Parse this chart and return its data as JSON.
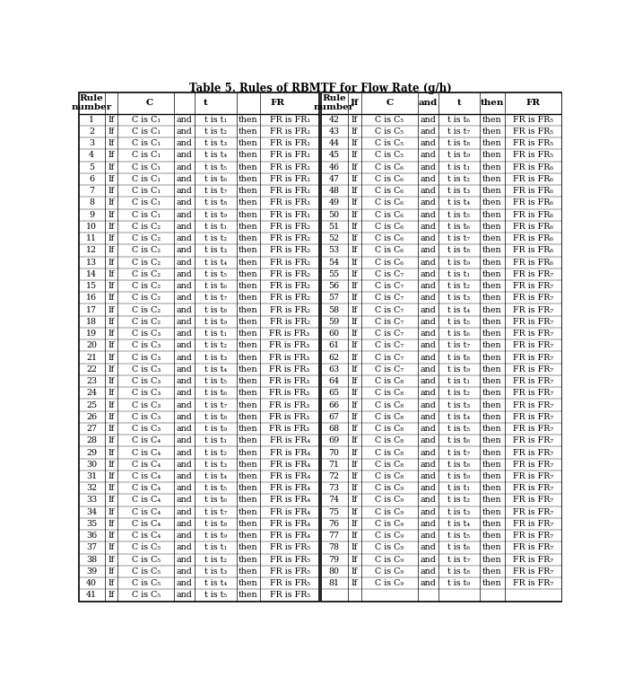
{
  "title": "Table 5. Rules of RBMTF for Flow Rate (g/h)",
  "rules": [
    [
      1,
      "C₁",
      "t₁",
      "FR₁"
    ],
    [
      2,
      "C₁",
      "t₂",
      "FR₁"
    ],
    [
      3,
      "C₁",
      "t₃",
      "FR₁"
    ],
    [
      4,
      "C₁",
      "t₄",
      "FR₁"
    ],
    [
      5,
      "C₁",
      "t₅",
      "FR₁"
    ],
    [
      6,
      "C₁",
      "t₆",
      "FR₁"
    ],
    [
      7,
      "C₁",
      "t₇",
      "FR₁"
    ],
    [
      8,
      "C₁",
      "t₈",
      "FR₁"
    ],
    [
      9,
      "C₁",
      "t₉",
      "FR₁"
    ],
    [
      10,
      "C₂",
      "t₁",
      "FR₂"
    ],
    [
      11,
      "C₂",
      "t₂",
      "FR₂"
    ],
    [
      12,
      "C₂",
      "t₃",
      "FR₂"
    ],
    [
      13,
      "C₂",
      "t₄",
      "FR₂"
    ],
    [
      14,
      "C₂",
      "t₅",
      "FR₂"
    ],
    [
      15,
      "C₂",
      "t₆",
      "FR₂"
    ],
    [
      16,
      "C₂",
      "t₇",
      "FR₂"
    ],
    [
      17,
      "C₂",
      "t₈",
      "FR₂"
    ],
    [
      18,
      "C₂",
      "t₉",
      "FR₂"
    ],
    [
      19,
      "C₃",
      "t₁",
      "FR₃"
    ],
    [
      20,
      "C₃",
      "t₂",
      "FR₃"
    ],
    [
      21,
      "C₃",
      "t₃",
      "FR₃"
    ],
    [
      22,
      "C₃",
      "t₄",
      "FR₃"
    ],
    [
      23,
      "C₃",
      "t₅",
      "FR₃"
    ],
    [
      24,
      "C₃",
      "t₆",
      "FR₃"
    ],
    [
      25,
      "C₃",
      "t₇",
      "FR₃"
    ],
    [
      26,
      "C₃",
      "t₈",
      "FR₃"
    ],
    [
      27,
      "C₃",
      "t₉",
      "FR₃"
    ],
    [
      28,
      "C₄",
      "t₁",
      "FR₄"
    ],
    [
      29,
      "C₄",
      "t₂",
      "FR₄"
    ],
    [
      30,
      "C₄",
      "t₃",
      "FR₄"
    ],
    [
      31,
      "C₄",
      "t₄",
      "FR₄"
    ],
    [
      32,
      "C₄",
      "t₅",
      "FR₄"
    ],
    [
      33,
      "C₄",
      "t₆",
      "FR₄"
    ],
    [
      34,
      "C₄",
      "t₇",
      "FR₄"
    ],
    [
      35,
      "C₄",
      "t₈",
      "FR₄"
    ],
    [
      36,
      "C₄",
      "t₉",
      "FR₄"
    ],
    [
      37,
      "C₅",
      "t₁",
      "FR₅"
    ],
    [
      38,
      "C₅",
      "t₂",
      "FR₅"
    ],
    [
      39,
      "C₅",
      "t₃",
      "FR₅"
    ],
    [
      40,
      "C₅",
      "t₄",
      "FR₅"
    ],
    [
      41,
      "C₅",
      "t₅",
      "FR₅"
    ],
    [
      42,
      "C₅",
      "t₆",
      "FR₅"
    ],
    [
      43,
      "C₅",
      "t₇",
      "FR₅"
    ],
    [
      44,
      "C₅",
      "t₈",
      "FR₅"
    ],
    [
      45,
      "C₅",
      "t₉",
      "FR₅"
    ],
    [
      46,
      "C₆",
      "t₁",
      "FR₆"
    ],
    [
      47,
      "C₆",
      "t₂",
      "FR₆"
    ],
    [
      48,
      "C₆",
      "t₃",
      "FR₆"
    ],
    [
      49,
      "C₆",
      "t₄",
      "FR₆"
    ],
    [
      50,
      "C₆",
      "t₅",
      "FR₆"
    ],
    [
      51,
      "C₆",
      "t₆",
      "FR₆"
    ],
    [
      52,
      "C₆",
      "t₇",
      "FR₆"
    ],
    [
      53,
      "C₆",
      "t₈",
      "FR₆"
    ],
    [
      54,
      "C₆",
      "t₉",
      "FR₆"
    ],
    [
      55,
      "C₇",
      "t₁",
      "FR₇"
    ],
    [
      56,
      "C₇",
      "t₂",
      "FR₇"
    ],
    [
      57,
      "C₇",
      "t₃",
      "FR₇"
    ],
    [
      58,
      "C₇",
      "t₄",
      "FR₇"
    ],
    [
      59,
      "C₇",
      "t₅",
      "FR₇"
    ],
    [
      60,
      "C₇",
      "t₆",
      "FR₇"
    ],
    [
      61,
      "C₇",
      "t₇",
      "FR₇"
    ],
    [
      62,
      "C₇",
      "t₈",
      "FR₇"
    ],
    [
      63,
      "C₇",
      "t₉",
      "FR₇"
    ],
    [
      64,
      "C₈",
      "t₁",
      "FR₇"
    ],
    [
      65,
      "C₈",
      "t₂",
      "FR₇"
    ],
    [
      66,
      "C₈",
      "t₃",
      "FR₇"
    ],
    [
      67,
      "C₈",
      "t₄",
      "FR₇"
    ],
    [
      68,
      "C₈",
      "t₅",
      "FR₇"
    ],
    [
      69,
      "C₈",
      "t₆",
      "FR₇"
    ],
    [
      70,
      "C₈",
      "t₇",
      "FR₇"
    ],
    [
      71,
      "C₈",
      "t₈",
      "FR₇"
    ],
    [
      72,
      "C₈",
      "t₉",
      "FR₇"
    ],
    [
      73,
      "C₉",
      "t₁",
      "FR₇"
    ],
    [
      74,
      "C₉",
      "t₂",
      "FR₇"
    ],
    [
      75,
      "C₉",
      "t₃",
      "FR₇"
    ],
    [
      76,
      "C₉",
      "t₄",
      "FR₇"
    ],
    [
      77,
      "C₉",
      "t₅",
      "FR₇"
    ],
    [
      78,
      "C₉",
      "t₆",
      "FR₇"
    ],
    [
      79,
      "C₉",
      "t₇",
      "FR₇"
    ],
    [
      80,
      "C₉",
      "t₈",
      "FR₇"
    ],
    [
      81,
      "C₉",
      "t₉",
      "FR₇"
    ]
  ],
  "split_at": 41,
  "bg_color": "#ffffff",
  "font_size": 6.8,
  "title_font_size": 8.5,
  "header_font_size": 7.5
}
